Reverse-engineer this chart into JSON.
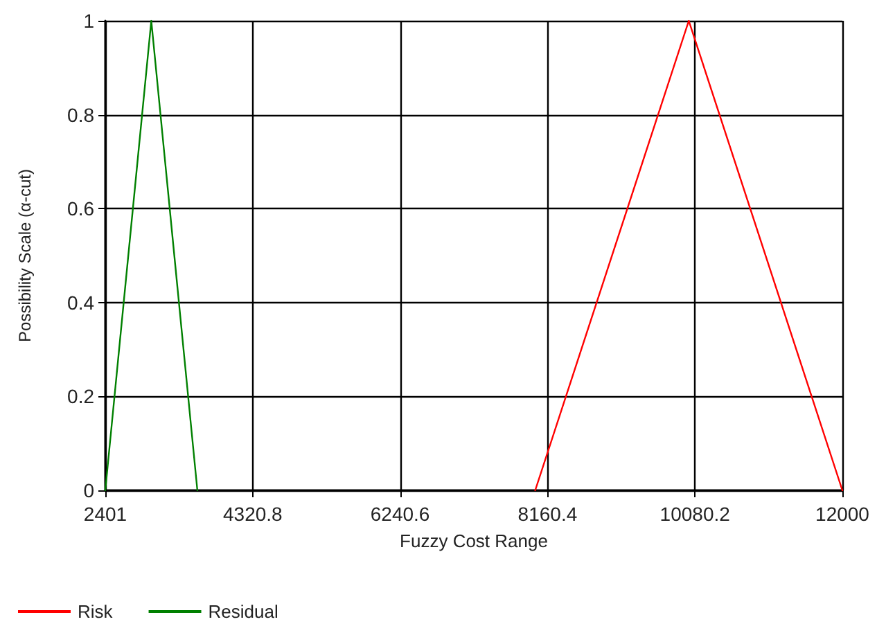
{
  "chart_data": {
    "type": "line",
    "xlabel": "Fuzzy Cost Range",
    "ylabel": "Possibility Scale (α-cut)",
    "series": [
      {
        "name": "Risk",
        "color": "#ff0000",
        "x": [
          8000,
          10000,
          12000
        ],
        "values": [
          0,
          1,
          0
        ]
      },
      {
        "name": "Residual",
        "color": "#008000",
        "x": [
          2401,
          3000,
          3600
        ],
        "values": [
          0,
          1,
          0
        ]
      }
    ],
    "xlim": [
      2401,
      12000
    ],
    "xticks": [
      2401,
      4320.8,
      6240.6,
      8160.4,
      10080.2,
      12000
    ],
    "ylim": [
      0,
      1
    ],
    "yticks": [
      0,
      0.2,
      0.4,
      0.6,
      0.8,
      1
    ],
    "grid": true,
    "legend": "bottom left",
    "marker": "none",
    "line_style": "solid"
  }
}
